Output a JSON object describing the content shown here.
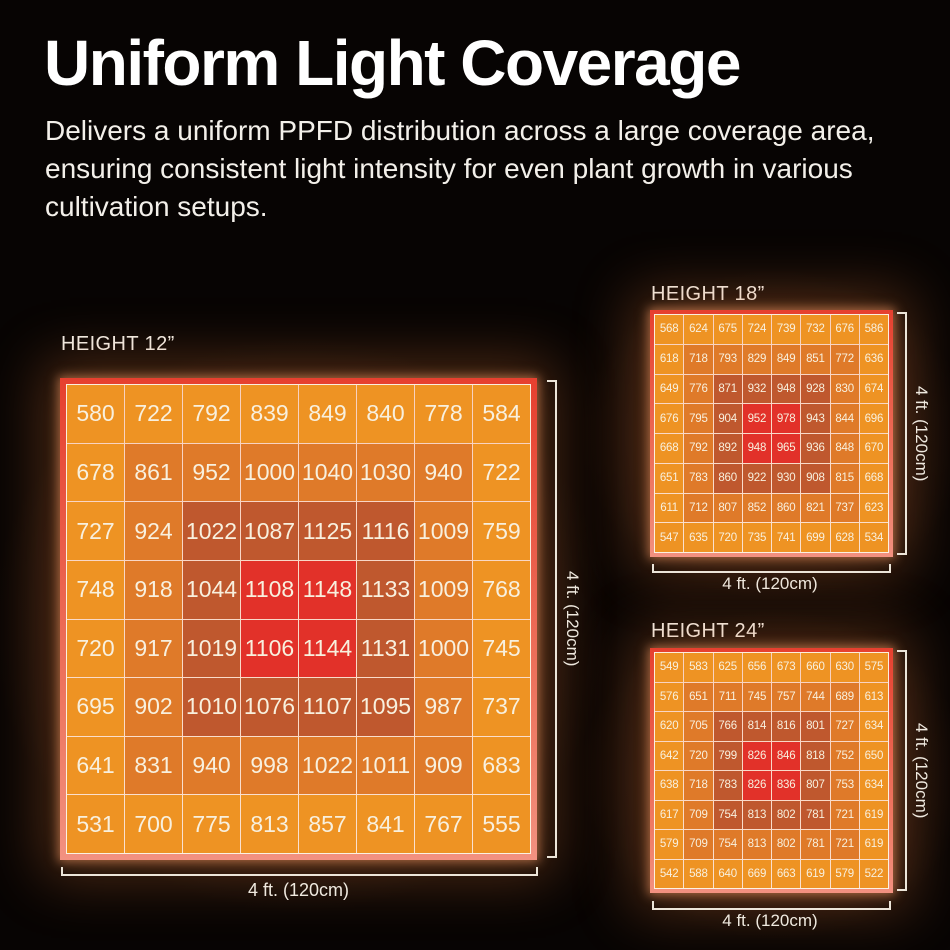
{
  "header": {
    "title": "Uniform Light Coverage",
    "description": "Delivers a uniform PPFD distribution across a large coverage area, ensuring consistent light intensity for even plant growth in various cultivation setups."
  },
  "colors": {
    "tiers": [
      "#EE9323",
      "#DF7A29",
      "#BF582E",
      "#E23129"
    ],
    "frame_top": "#E6402F",
    "frame_bottom": "#F29180",
    "cell_text": "#F8F0DE",
    "grid_line": "rgba(253,245,229,0.8)",
    "label_text": "#EFE9DF"
  },
  "chart_data": [
    {
      "type": "heatmap",
      "title": "HEIGHT 12”",
      "x_axis_label": "4 ft. (120cm)",
      "y_axis_label": "4 ft. (120cm)",
      "grid_size": "8x8",
      "values": [
        [
          580,
          722,
          792,
          839,
          849,
          840,
          778,
          584
        ],
        [
          678,
          861,
          952,
          1000,
          1040,
          1030,
          940,
          722
        ],
        [
          727,
          924,
          1022,
          1087,
          1125,
          1116,
          1009,
          759
        ],
        [
          748,
          918,
          1044,
          1108,
          1148,
          1133,
          1009,
          768
        ],
        [
          720,
          917,
          1019,
          1106,
          1144,
          1131,
          1000,
          745
        ],
        [
          695,
          902,
          1010,
          1076,
          1107,
          1095,
          987,
          737
        ],
        [
          641,
          831,
          940,
          998,
          1022,
          1011,
          909,
          683
        ],
        [
          531,
          700,
          775,
          813,
          857,
          841,
          767,
          555
        ]
      ],
      "tiers": [
        [
          0,
          0,
          0,
          0,
          0,
          0,
          0,
          0
        ],
        [
          0,
          1,
          1,
          1,
          1,
          1,
          1,
          0
        ],
        [
          0,
          1,
          2,
          2,
          2,
          2,
          1,
          0
        ],
        [
          0,
          1,
          2,
          3,
          3,
          2,
          1,
          0
        ],
        [
          0,
          1,
          2,
          3,
          3,
          2,
          1,
          0
        ],
        [
          0,
          1,
          2,
          2,
          2,
          2,
          1,
          0
        ],
        [
          0,
          1,
          1,
          1,
          1,
          1,
          1,
          0
        ],
        [
          0,
          0,
          0,
          0,
          0,
          0,
          0,
          0
        ]
      ]
    },
    {
      "type": "heatmap",
      "title": "HEIGHT 18”",
      "x_axis_label": "4 ft. (120cm)",
      "y_axis_label": "4 ft. (120cm)",
      "grid_size": "8x8",
      "values": [
        [
          568,
          624,
          675,
          724,
          739,
          732,
          676,
          586
        ],
        [
          618,
          718,
          793,
          829,
          849,
          851,
          772,
          636
        ],
        [
          649,
          776,
          871,
          932,
          948,
          928,
          830,
          674
        ],
        [
          676,
          795,
          904,
          952,
          978,
          943,
          844,
          696
        ],
        [
          668,
          792,
          892,
          948,
          965,
          936,
          848,
          670
        ],
        [
          651,
          783,
          860,
          922,
          930,
          908,
          815,
          668
        ],
        [
          611,
          712,
          807,
          852,
          860,
          821,
          737,
          623
        ],
        [
          547,
          635,
          720,
          735,
          741,
          699,
          628,
          534
        ]
      ],
      "tiers": [
        [
          0,
          0,
          0,
          0,
          0,
          0,
          0,
          0
        ],
        [
          0,
          1,
          1,
          1,
          1,
          1,
          1,
          0
        ],
        [
          0,
          1,
          2,
          2,
          2,
          2,
          1,
          0
        ],
        [
          0,
          1,
          2,
          3,
          3,
          2,
          1,
          0
        ],
        [
          0,
          1,
          2,
          3,
          3,
          2,
          1,
          0
        ],
        [
          0,
          1,
          2,
          2,
          2,
          2,
          1,
          0
        ],
        [
          0,
          1,
          1,
          1,
          1,
          1,
          1,
          0
        ],
        [
          0,
          0,
          0,
          0,
          0,
          0,
          0,
          0
        ]
      ]
    },
    {
      "type": "heatmap",
      "title": "HEIGHT 24”",
      "x_axis_label": "4 ft. (120cm)",
      "y_axis_label": "4 ft. (120cm)",
      "grid_size": "8x8",
      "values": [
        [
          549,
          583,
          625,
          656,
          673,
          660,
          630,
          575
        ],
        [
          576,
          651,
          711,
          745,
          757,
          744,
          689,
          613
        ],
        [
          620,
          705,
          766,
          814,
          816,
          801,
          727,
          634
        ],
        [
          642,
          720,
          799,
          826,
          846,
          818,
          752,
          650
        ],
        [
          638,
          718,
          783,
          826,
          836,
          807,
          753,
          634
        ],
        [
          617,
          709,
          754,
          813,
          802,
          781,
          721,
          619
        ],
        [
          579,
          709,
          754,
          813,
          802,
          781,
          721,
          619
        ],
        [
          542,
          588,
          640,
          669,
          663,
          619,
          579,
          522
        ]
      ],
      "tiers": [
        [
          0,
          0,
          0,
          0,
          0,
          0,
          0,
          0
        ],
        [
          0,
          1,
          1,
          1,
          1,
          1,
          1,
          0
        ],
        [
          0,
          1,
          2,
          2,
          2,
          2,
          1,
          0
        ],
        [
          0,
          1,
          2,
          3,
          3,
          2,
          1,
          0
        ],
        [
          0,
          1,
          2,
          3,
          3,
          2,
          1,
          0
        ],
        [
          0,
          1,
          2,
          2,
          2,
          2,
          1,
          0
        ],
        [
          0,
          1,
          1,
          1,
          1,
          1,
          1,
          0
        ],
        [
          0,
          0,
          0,
          0,
          0,
          0,
          0,
          0
        ]
      ]
    }
  ]
}
